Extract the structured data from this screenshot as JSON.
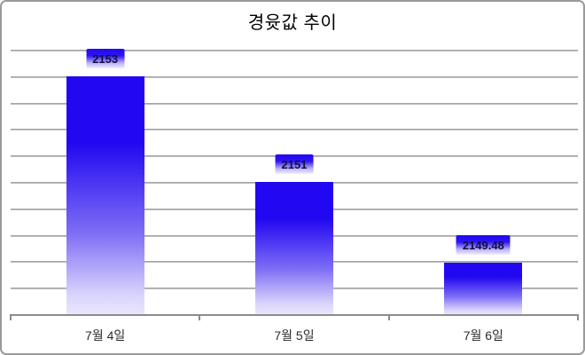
{
  "title": "경윳값 추이",
  "chart_data": {
    "type": "bar",
    "title": "경윳값 추이",
    "categories": [
      "7월 4일",
      "7월 5일",
      "7월 6일"
    ],
    "values": [
      2153,
      2151,
      2149.48
    ],
    "value_labels": [
      "2153",
      "2151",
      "2149.48"
    ],
    "xlabel": "",
    "ylabel": "",
    "ylim": [
      2148.5,
      2153.5
    ],
    "ystep": 0.5,
    "grid": "horizontal",
    "legend": "none",
    "y_axis_labels_visible": false,
    "colors": {
      "bar_top": "#2208f0",
      "bar_bottom": "#e9e6fd",
      "label_box_top": "#2208f0",
      "label_box_bottom": "#f2f0fe",
      "label_text": "#10103a",
      "gridline": "#a6a6a6",
      "axis": "#8c8c8c",
      "title_text": "#000000",
      "tick_label": "#2b2b2b",
      "background": "#ffffff",
      "border": "#9a9a9a"
    }
  }
}
